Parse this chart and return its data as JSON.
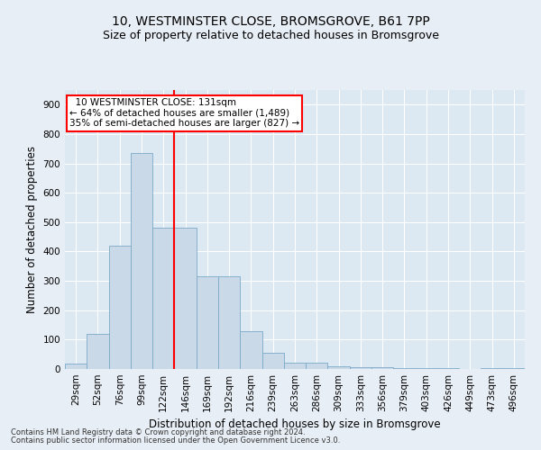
{
  "title1": "10, WESTMINSTER CLOSE, BROMSGROVE, B61 7PP",
  "title2": "Size of property relative to detached houses in Bromsgrove",
  "xlabel": "Distribution of detached houses by size in Bromsgrove",
  "ylabel": "Number of detached properties",
  "footer1": "Contains HM Land Registry data © Crown copyright and database right 2024.",
  "footer2": "Contains public sector information licensed under the Open Government Licence v3.0.",
  "bar_labels": [
    "29sqm",
    "52sqm",
    "76sqm",
    "99sqm",
    "122sqm",
    "146sqm",
    "169sqm",
    "192sqm",
    "216sqm",
    "239sqm",
    "263sqm",
    "286sqm",
    "309sqm",
    "333sqm",
    "356sqm",
    "379sqm",
    "403sqm",
    "426sqm",
    "449sqm",
    "473sqm",
    "496sqm"
  ],
  "bar_values": [
    18,
    120,
    420,
    735,
    480,
    480,
    315,
    315,
    130,
    55,
    20,
    20,
    10,
    5,
    5,
    4,
    3,
    2,
    1,
    3,
    4
  ],
  "bar_color": "#c9d9e8",
  "bar_edge_color": "#7aaac8",
  "red_line_x": 4.5,
  "annotation_line1": "  10 WESTMINSTER CLOSE: 131sqm",
  "annotation_line2": "← 64% of detached houses are smaller (1,489)",
  "annotation_line3": "35% of semi-detached houses are larger (827) →",
  "annotation_box_color": "white",
  "annotation_box_edge": "red",
  "ylim": [
    0,
    950
  ],
  "yticks": [
    0,
    100,
    200,
    300,
    400,
    500,
    600,
    700,
    800,
    900
  ],
  "bg_color": "#e8eef5",
  "plot_bg_color": "#dce8f2",
  "grid_color": "white",
  "title1_fontsize": 10,
  "title2_fontsize": 9,
  "xlabel_fontsize": 8.5,
  "ylabel_fontsize": 8.5,
  "annot_fontsize": 7.5,
  "tick_fontsize": 7.5
}
